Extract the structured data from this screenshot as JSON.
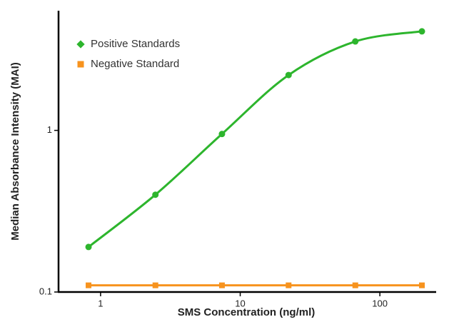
{
  "chart_data": {
    "type": "line",
    "x_label": "SMS Concentration (ng/ml)",
    "y_label": "Median Absorbance Intensity (MAI)",
    "x": [
      0.82,
      2.47,
      7.4,
      22.2,
      66.7,
      200
    ],
    "series": [
      {
        "name": "Positive Standards",
        "color": "#2db52d",
        "marker": "circle",
        "values": [
          0.19,
          0.4,
          0.95,
          2.2,
          3.55,
          4.1
        ]
      },
      {
        "name": "Negative Standard",
        "color": "#f7931e",
        "marker": "square",
        "values": [
          0.11,
          0.11,
          0.11,
          0.11,
          0.11,
          0.11
        ]
      }
    ],
    "xlim": [
      0.5,
      250
    ],
    "ylim": [
      0.1,
      5.5
    ],
    "xticks": [
      1,
      10,
      100
    ],
    "yticks": [
      0.1,
      1
    ],
    "xscale": "log",
    "yscale": "log",
    "grid": false,
    "legend": "upper left"
  }
}
